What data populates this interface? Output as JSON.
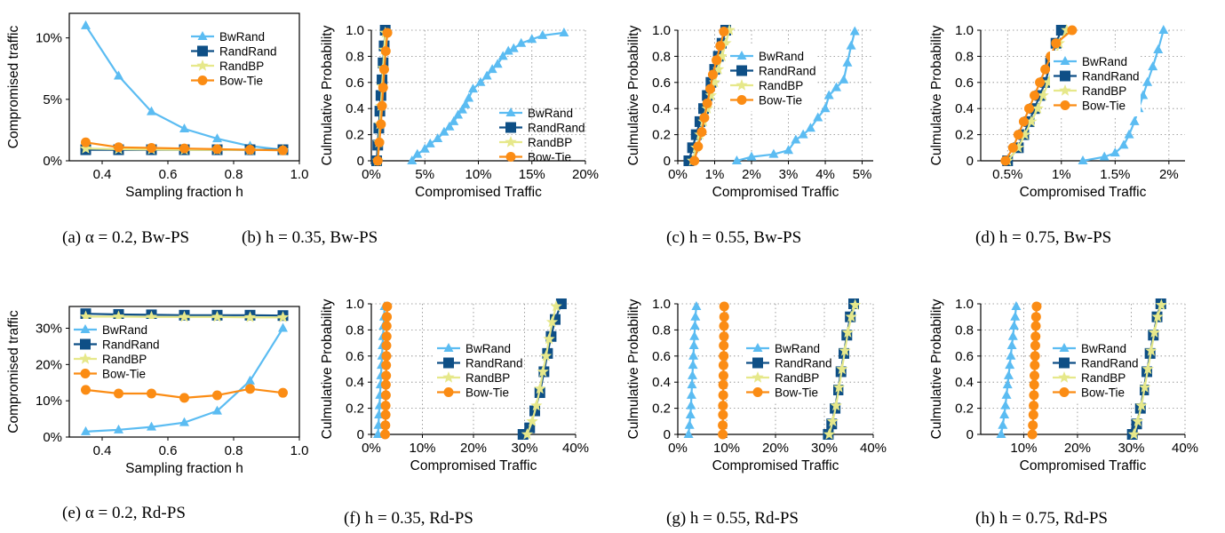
{
  "colors": {
    "BwRand": "#5bbcf2",
    "RandRand": "#0e4f86",
    "RandBP": "#e6e88a",
    "Bow-Tie": "#fb8c14"
  },
  "chart_data": [
    {
      "type": "line",
      "caption": "(a) α = 0.2, Bw-PS",
      "xlabel": "Sampling fraction h",
      "ylabel": "Compromised traffic",
      "xlim": [
        0.3,
        1.0
      ],
      "ylim": [
        0,
        12
      ],
      "xticks": [
        0.4,
        0.6,
        0.8,
        1.0
      ],
      "xtick_labels": [
        "0.4",
        "0.6",
        "0.8",
        "1.0"
      ],
      "yticks": [
        0,
        5,
        10
      ],
      "ytick_labels": [
        "0%",
        "5%",
        "10%"
      ],
      "grid": false,
      "legend": "top-right",
      "x": [
        0.35,
        0.45,
        0.55,
        0.65,
        0.75,
        0.85,
        0.95
      ],
      "series": [
        {
          "name": "BwRand",
          "values": [
            11.0,
            6.9,
            4.0,
            2.6,
            1.8,
            1.2,
            0.9
          ]
        },
        {
          "name": "RandRand",
          "values": [
            0.9,
            0.9,
            0.9,
            0.9,
            0.9,
            0.9,
            0.9
          ]
        },
        {
          "name": "RandBP",
          "values": [
            1.0,
            0.95,
            0.92,
            0.9,
            0.9,
            0.88,
            0.85
          ]
        },
        {
          "name": "Bow-Tie",
          "values": [
            1.5,
            1.1,
            1.05,
            1.0,
            0.95,
            0.9,
            0.85
          ]
        }
      ]
    },
    {
      "type": "line",
      "caption": "(b) h = 0.35, Bw-PS",
      "xlabel": "Compromised Traffic",
      "ylabel": "Culmulative Probability",
      "xlim": [
        0,
        20
      ],
      "ylim": [
        0,
        1
      ],
      "xticks": [
        0,
        5,
        10,
        15,
        20
      ],
      "xtick_labels": [
        "0%",
        "5%",
        "10%",
        "15%",
        "20%"
      ],
      "yticks": [
        0,
        0.2,
        0.4,
        0.6,
        0.8,
        1.0
      ],
      "ytick_labels": [
        "0",
        "0.2",
        "0.4",
        "0.6",
        "0.8",
        "1.0"
      ],
      "grid": true,
      "legend": "lower-right",
      "series": [
        {
          "name": "BwRand",
          "x": [
            3.8,
            4.3,
            5.0,
            5.5,
            6.2,
            6.8,
            7.3,
            7.7,
            8.1,
            8.5,
            8.8,
            9.1,
            9.5,
            10.2,
            10.8,
            11.3,
            11.8,
            12.3,
            12.8,
            13.3,
            14.0,
            15.0,
            16.0,
            18.0
          ],
          "y": [
            0.0,
            0.05,
            0.09,
            0.13,
            0.17,
            0.22,
            0.26,
            0.3,
            0.35,
            0.39,
            0.43,
            0.48,
            0.55,
            0.6,
            0.65,
            0.7,
            0.74,
            0.8,
            0.84,
            0.86,
            0.9,
            0.93,
            0.96,
            0.98
          ]
        },
        {
          "name": "RandRand",
          "x": [
            0.5,
            0.6,
            0.7,
            0.8,
            0.9,
            1.0,
            1.1,
            1.2,
            1.3
          ],
          "y": [
            0.0,
            0.12,
            0.25,
            0.38,
            0.5,
            0.62,
            0.75,
            0.88,
            1.0
          ]
        },
        {
          "name": "RandBP",
          "x": [
            0.6,
            0.7,
            0.8,
            0.9,
            1.0,
            1.1,
            1.2,
            1.3
          ],
          "y": [
            0.0,
            0.14,
            0.28,
            0.42,
            0.57,
            0.71,
            0.85,
            0.98
          ]
        },
        {
          "name": "Bow-Tie",
          "x": [
            0.6,
            0.75,
            0.9,
            1.0,
            1.1,
            1.2,
            1.35,
            1.5
          ],
          "y": [
            0.0,
            0.14,
            0.28,
            0.42,
            0.56,
            0.7,
            0.84,
            0.98
          ]
        }
      ]
    },
    {
      "type": "line",
      "caption": "(c) h = 0.55, Bw-PS",
      "xlabel": "Compromised Traffic",
      "ylabel": "Culmulative Probability",
      "xlim": [
        0,
        5.3
      ],
      "ylim": [
        0,
        1
      ],
      "xticks": [
        0,
        1,
        2,
        3,
        4,
        5
      ],
      "xtick_labels": [
        "0%",
        "1%",
        "2%",
        "3%",
        "4%",
        "5%"
      ],
      "yticks": [
        0,
        0.2,
        0.4,
        0.6,
        0.8,
        1.0
      ],
      "ytick_labels": [
        "0",
        "0.2",
        "0.4",
        "0.6",
        "0.8",
        "1.0"
      ],
      "grid": true,
      "legend": "center-right",
      "series": [
        {
          "name": "BwRand",
          "x": [
            1.6,
            2.0,
            2.6,
            3.0,
            3.2,
            3.4,
            3.6,
            3.8,
            4.0,
            4.1,
            4.3,
            4.5,
            4.6,
            4.7,
            4.8
          ],
          "y": [
            0.0,
            0.03,
            0.05,
            0.08,
            0.16,
            0.2,
            0.25,
            0.33,
            0.4,
            0.5,
            0.56,
            0.62,
            0.75,
            0.88,
            0.99
          ]
        },
        {
          "name": "RandRand",
          "x": [
            0.3,
            0.4,
            0.5,
            0.6,
            0.7,
            0.8,
            0.9,
            1.0,
            1.1,
            1.2,
            1.3
          ],
          "y": [
            0.0,
            0.1,
            0.2,
            0.3,
            0.4,
            0.5,
            0.6,
            0.7,
            0.8,
            0.9,
            1.0
          ]
        },
        {
          "name": "RandBP",
          "x": [
            0.4,
            0.5,
            0.6,
            0.7,
            0.8,
            0.9,
            1.0,
            1.1,
            1.2,
            1.3,
            1.4
          ],
          "y": [
            0.0,
            0.1,
            0.2,
            0.3,
            0.4,
            0.5,
            0.6,
            0.7,
            0.8,
            0.9,
            1.0
          ]
        },
        {
          "name": "Bow-Tie",
          "x": [
            0.45,
            0.55,
            0.65,
            0.72,
            0.8,
            0.88,
            0.95,
            1.05,
            1.15,
            1.25
          ],
          "y": [
            0.0,
            0.11,
            0.22,
            0.33,
            0.44,
            0.55,
            0.66,
            0.77,
            0.88,
            0.99
          ]
        }
      ]
    },
    {
      "type": "line",
      "caption": "(d) h = 0.75, Bw-PS",
      "xlabel": "Compromised Traffic",
      "ylabel": "Culmulative Probability",
      "xlim": [
        0.25,
        2.15
      ],
      "ylim": [
        0,
        1
      ],
      "xticks": [
        0.5,
        1.0,
        1.5,
        2.0
      ],
      "xtick_labels": [
        "0.5%",
        "1%",
        "1.5%",
        "2%"
      ],
      "yticks": [
        0,
        0.2,
        0.4,
        0.6,
        0.8,
        1.0
      ],
      "ytick_labels": [
        "0",
        "0.2",
        "0.4",
        "0.6",
        "0.8",
        "1.0"
      ],
      "grid": true,
      "legend": "top-right",
      "series": [
        {
          "name": "BwRand",
          "x": [
            1.2,
            1.4,
            1.5,
            1.58,
            1.63,
            1.68,
            1.72,
            1.76,
            1.8,
            1.85,
            1.9,
            1.95
          ],
          "y": [
            0.0,
            0.03,
            0.06,
            0.12,
            0.2,
            0.3,
            0.4,
            0.5,
            0.6,
            0.72,
            0.85,
            1.0
          ]
        },
        {
          "name": "RandRand",
          "x": [
            0.5,
            0.6,
            0.65,
            0.7,
            0.75,
            0.8,
            0.85,
            0.9,
            0.95,
            1.0
          ],
          "y": [
            0.0,
            0.1,
            0.2,
            0.3,
            0.4,
            0.5,
            0.6,
            0.75,
            0.9,
            1.0
          ]
        },
        {
          "name": "RandBP",
          "x": [
            0.5,
            0.6,
            0.66,
            0.72,
            0.78,
            0.83,
            0.88,
            0.93,
            0.98,
            1.05
          ],
          "y": [
            0.0,
            0.1,
            0.2,
            0.3,
            0.4,
            0.5,
            0.6,
            0.75,
            0.9,
            1.0
          ]
        },
        {
          "name": "Bow-Tie",
          "x": [
            0.48,
            0.55,
            0.6,
            0.65,
            0.7,
            0.75,
            0.8,
            0.85,
            0.9,
            0.95,
            1.1
          ],
          "y": [
            0.0,
            0.1,
            0.2,
            0.3,
            0.4,
            0.5,
            0.6,
            0.7,
            0.8,
            0.9,
            1.0
          ]
        }
      ]
    },
    {
      "type": "line",
      "caption": "(e) α = 0.2, Rd-PS",
      "xlabel": "Sampling fraction h",
      "ylabel": "Compromised traffic",
      "xlim": [
        0.3,
        1.0
      ],
      "ylim": [
        0,
        36
      ],
      "xticks": [
        0.4,
        0.6,
        0.8,
        1.0
      ],
      "xtick_labels": [
        "0.4",
        "0.6",
        "0.8",
        "1.0"
      ],
      "yticks": [
        0,
        10,
        20,
        30
      ],
      "ytick_labels": [
        "0%",
        "10%",
        "20%",
        "30%"
      ],
      "grid": false,
      "legend": "center-left",
      "x": [
        0.35,
        0.45,
        0.55,
        0.65,
        0.75,
        0.85,
        0.95
      ],
      "series": [
        {
          "name": "BwRand",
          "values": [
            1.5,
            2.0,
            2.8,
            4.0,
            7.2,
            15.5,
            30.0
          ]
        },
        {
          "name": "RandRand",
          "values": [
            34.0,
            33.8,
            33.7,
            33.6,
            33.6,
            33.6,
            33.5
          ]
        },
        {
          "name": "RandBP",
          "values": [
            33.2,
            33.2,
            33.1,
            33.1,
            33.1,
            33.0,
            33.0
          ]
        },
        {
          "name": "Bow-Tie",
          "values": [
            13.0,
            12.0,
            12.0,
            10.8,
            11.5,
            13.3,
            12.2
          ]
        }
      ]
    },
    {
      "type": "line",
      "caption": "(f) h = 0.35, Rd-PS",
      "xlabel": "Compromised Traffic",
      "ylabel": "Culmulative Probability",
      "xlim": [
        0,
        40
      ],
      "ylim": [
        0,
        1
      ],
      "xticks": [
        0,
        10,
        20,
        30,
        40
      ],
      "xtick_labels": [
        "0%",
        "10%",
        "20%",
        "30%",
        "40%"
      ],
      "yticks": [
        0,
        0.2,
        0.4,
        0.6,
        0.8,
        1.0
      ],
      "ytick_labels": [
        "0",
        "0.2",
        "0.4",
        "0.6",
        "0.8",
        "1.0"
      ],
      "grid": true,
      "legend": "center",
      "series": [
        {
          "name": "BwRand",
          "x": [
            1.3,
            1.4,
            1.5,
            1.6,
            1.7,
            1.8,
            1.9,
            2.0,
            2.1,
            2.2,
            2.3,
            2.4,
            2.5,
            2.6
          ],
          "y": [
            0.0,
            0.07,
            0.15,
            0.22,
            0.3,
            0.38,
            0.45,
            0.53,
            0.6,
            0.68,
            0.75,
            0.83,
            0.9,
            0.98
          ]
        },
        {
          "name": "RandRand",
          "x": [
            29.7,
            31.0,
            32.0,
            33.0,
            33.8,
            34.5,
            35.2,
            36.0,
            37.2
          ],
          "y": [
            0.0,
            0.05,
            0.18,
            0.32,
            0.48,
            0.62,
            0.75,
            0.88,
            1.0
          ]
        },
        {
          "name": "RandBP",
          "x": [
            30.5,
            31.5,
            32.3,
            33.0,
            33.6,
            34.2,
            34.8,
            35.4,
            36.2
          ],
          "y": [
            0.0,
            0.1,
            0.22,
            0.35,
            0.48,
            0.6,
            0.73,
            0.86,
            0.98
          ]
        },
        {
          "name": "Bow-Tie",
          "x": [
            2.7,
            2.75,
            2.8,
            2.8,
            2.85,
            2.85,
            2.9,
            2.9,
            2.95,
            2.95,
            3.0,
            3.0,
            3.05,
            3.1
          ],
          "y": [
            0.0,
            0.07,
            0.15,
            0.22,
            0.3,
            0.38,
            0.45,
            0.53,
            0.6,
            0.68,
            0.75,
            0.83,
            0.9,
            0.98
          ]
        }
      ]
    },
    {
      "type": "line",
      "caption": "(g) h = 0.55, Rd-PS",
      "xlabel": "Compromised Traffic",
      "ylabel": "Culmulative Probability",
      "xlim": [
        0,
        40
      ],
      "ylim": [
        0,
        1
      ],
      "xticks": [
        0,
        10,
        20,
        30,
        40
      ],
      "xtick_labels": [
        "0%",
        "10%",
        "20%",
        "30%",
        "40%"
      ],
      "yticks": [
        0,
        0.2,
        0.4,
        0.6,
        0.8,
        1.0
      ],
      "ytick_labels": [
        "0",
        "0.2",
        "0.4",
        "0.6",
        "0.8",
        "1.0"
      ],
      "grid": true,
      "legend": "center",
      "series": [
        {
          "name": "BwRand",
          "x": [
            2.2,
            2.4,
            2.6,
            2.7,
            2.8,
            2.9,
            3.0,
            3.1,
            3.2,
            3.3,
            3.4,
            3.5,
            3.6,
            3.8
          ],
          "y": [
            0.0,
            0.07,
            0.15,
            0.22,
            0.3,
            0.38,
            0.45,
            0.53,
            0.6,
            0.68,
            0.75,
            0.83,
            0.9,
            0.98
          ]
        },
        {
          "name": "RandRand",
          "x": [
            30.8,
            31.5,
            32.2,
            32.8,
            33.4,
            34.0,
            34.6,
            35.3,
            36.0
          ],
          "y": [
            0.0,
            0.08,
            0.2,
            0.34,
            0.48,
            0.62,
            0.76,
            0.9,
            1.0
          ]
        },
        {
          "name": "RandBP",
          "x": [
            31.0,
            31.7,
            32.4,
            33.0,
            33.6,
            34.2,
            34.8,
            35.5,
            36.3
          ],
          "y": [
            0.0,
            0.1,
            0.22,
            0.36,
            0.5,
            0.64,
            0.78,
            0.9,
            0.99
          ]
        },
        {
          "name": "Bow-Tie",
          "x": [
            9.2,
            9.2,
            9.25,
            9.25,
            9.3,
            9.3,
            9.35,
            9.35,
            9.4,
            9.4,
            9.45,
            9.45,
            9.5,
            9.5
          ],
          "y": [
            0.0,
            0.07,
            0.15,
            0.22,
            0.3,
            0.38,
            0.45,
            0.53,
            0.6,
            0.68,
            0.75,
            0.83,
            0.9,
            0.98
          ]
        }
      ]
    },
    {
      "type": "line",
      "caption": "(h) h = 0.75, Rd-PS",
      "xlabel": "Compromised Traffic",
      "ylabel": "Culmulative Probability",
      "xlim": [
        2,
        40
      ],
      "ylim": [
        0,
        1
      ],
      "xticks": [
        10,
        20,
        30,
        40
      ],
      "xtick_labels": [
        "10%",
        "20%",
        "30%",
        "40%"
      ],
      "yticks": [
        0,
        0.2,
        0.4,
        0.6,
        0.8,
        1.0
      ],
      "ytick_labels": [
        "0",
        "0.2",
        "0.4",
        "0.6",
        "0.8",
        "1.0"
      ],
      "grid": true,
      "legend": "center",
      "series": [
        {
          "name": "BwRand",
          "x": [
            5.8,
            6.1,
            6.4,
            6.6,
            6.8,
            7.0,
            7.2,
            7.4,
            7.6,
            7.8,
            8.0,
            8.2,
            8.4,
            8.6
          ],
          "y": [
            0.0,
            0.07,
            0.15,
            0.22,
            0.3,
            0.38,
            0.45,
            0.53,
            0.6,
            0.68,
            0.75,
            0.83,
            0.9,
            0.98
          ]
        },
        {
          "name": "RandRand",
          "x": [
            30.2,
            31.0,
            31.7,
            32.3,
            32.9,
            33.5,
            34.1,
            34.8,
            35.5
          ],
          "y": [
            0.0,
            0.08,
            0.2,
            0.34,
            0.48,
            0.62,
            0.76,
            0.9,
            1.0
          ]
        },
        {
          "name": "RandBP",
          "x": [
            30.5,
            31.2,
            31.9,
            32.5,
            33.1,
            33.7,
            34.3,
            34.9,
            35.6
          ],
          "y": [
            0.0,
            0.1,
            0.22,
            0.36,
            0.5,
            0.64,
            0.78,
            0.9,
            0.99
          ]
        },
        {
          "name": "Bow-Tie",
          "x": [
            11.6,
            11.7,
            11.8,
            11.85,
            11.9,
            11.95,
            12.0,
            12.05,
            12.1,
            12.15,
            12.2,
            12.25,
            12.3,
            12.4
          ],
          "y": [
            0.0,
            0.07,
            0.15,
            0.22,
            0.3,
            0.38,
            0.45,
            0.53,
            0.6,
            0.68,
            0.75,
            0.83,
            0.9,
            0.98
          ]
        }
      ]
    }
  ]
}
